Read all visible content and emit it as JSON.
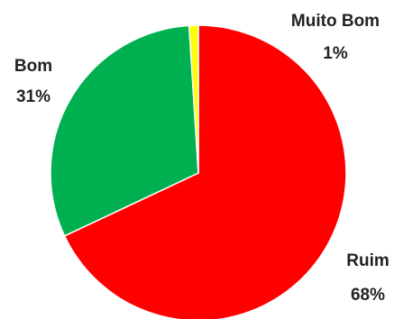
{
  "chart_data": {
    "type": "pie",
    "title": "",
    "slices": [
      {
        "label": "Ruim",
        "value": 68,
        "pct_label": "68%",
        "color": "#ff0000"
      },
      {
        "label": "Bom",
        "value": 31,
        "pct_label": "31%",
        "color": "#00b050"
      },
      {
        "label": "Muito Bom",
        "value": 1,
        "pct_label": "1%",
        "color": "#ffff00"
      }
    ],
    "start_angle_deg": 0,
    "direction": "clockwise",
    "data_labels": "outside, category name and percentage",
    "legend": "none"
  }
}
